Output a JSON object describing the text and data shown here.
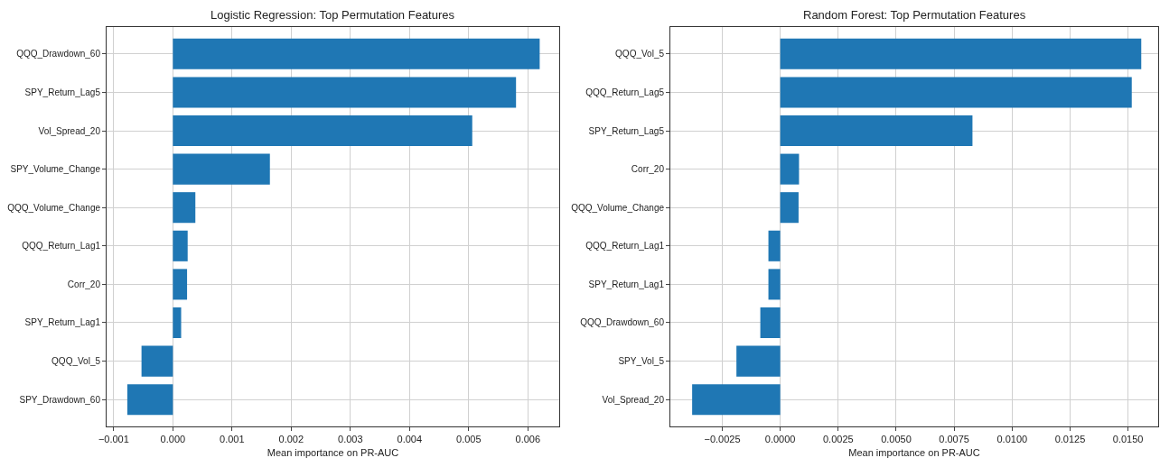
{
  "chart_data": [
    {
      "type": "bar",
      "orientation": "horizontal",
      "title": "Logistic Regression: Top Permutation Features",
      "xlabel": "Mean importance on PR-AUC",
      "categories": [
        "QQQ_Drawdown_60",
        "SPY_Return_Lag5",
        "Vol_Spread_20",
        "SPY_Volume_Change",
        "QQQ_Volume_Change",
        "QQQ_Return_Lag1",
        "Corr_20",
        "SPY_Return_Lag1",
        "QQQ_Vol_5",
        "SPY_Drawdown_60"
      ],
      "values": [
        0.0062,
        0.0058,
        0.00506,
        0.00164,
        0.00038,
        0.00025,
        0.00024,
        0.00014,
        -0.00053,
        -0.00077
      ],
      "color": "#1f77b4",
      "xlim": [
        -0.00112,
        0.00653
      ],
      "xticks": [
        {
          "value": -0.001,
          "label": "−0.001"
        },
        {
          "value": 0,
          "label": "0.000"
        },
        {
          "value": 0.001,
          "label": "0.001"
        },
        {
          "value": 0.002,
          "label": "0.002"
        },
        {
          "value": 0.003,
          "label": "0.003"
        },
        {
          "value": 0.004,
          "label": "0.004"
        },
        {
          "value": 0.005,
          "label": "0.005"
        },
        {
          "value": 0.006,
          "label": "0.006"
        }
      ],
      "grid": true
    },
    {
      "type": "bar",
      "orientation": "horizontal",
      "title": "Random Forest: Top Permutation Features",
      "xlabel": "Mean importance on PR-AUC",
      "categories": [
        "QQQ_Vol_5",
        "QQQ_Return_Lag5",
        "SPY_Return_Lag5",
        "Corr_20",
        "QQQ_Volume_Change",
        "QQQ_Return_Lag1",
        "SPY_Return_Lag1",
        "QQQ_Drawdown_60",
        "SPY_Vol_5",
        "Vol_Spread_20"
      ],
      "values": [
        0.01557,
        0.01516,
        0.00829,
        0.00081,
        0.00079,
        -0.00051,
        -0.00051,
        -0.00086,
        -0.00189,
        -0.0038
      ],
      "color": "#1f77b4",
      "xlim": [
        -0.00474,
        0.0163
      ],
      "xticks": [
        {
          "value": -0.0025,
          "label": "−0.0025"
        },
        {
          "value": 0,
          "label": "0.0000"
        },
        {
          "value": 0.0025,
          "label": "0.0025"
        },
        {
          "value": 0.005,
          "label": "0.0050"
        },
        {
          "value": 0.0075,
          "label": "0.0075"
        },
        {
          "value": 0.01,
          "label": "0.0100"
        },
        {
          "value": 0.0125,
          "label": "0.0125"
        },
        {
          "value": 0.015,
          "label": "0.0150"
        }
      ],
      "grid": true
    }
  ]
}
